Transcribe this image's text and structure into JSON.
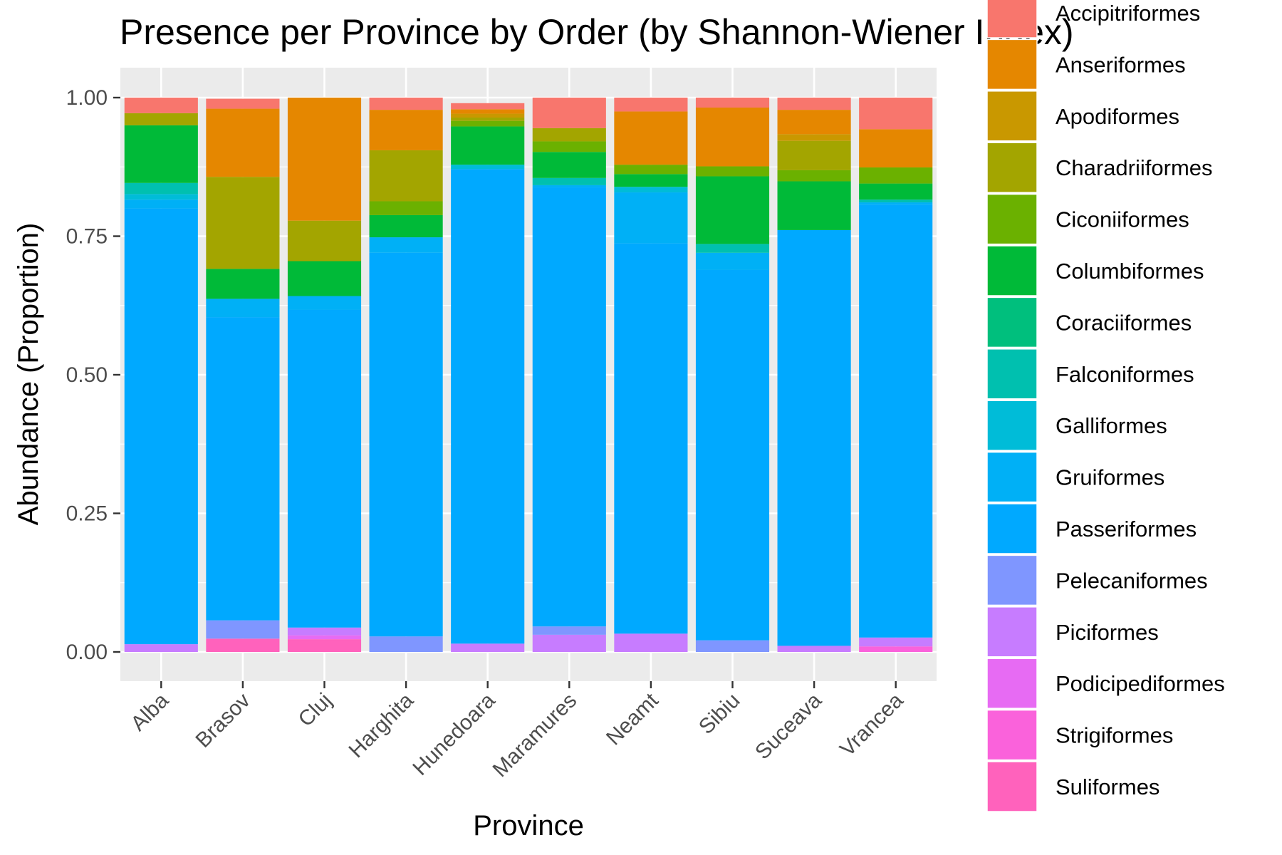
{
  "chart_data": {
    "type": "bar",
    "stacked": true,
    "title": "Presence per Province by Order (by Shannon-Wiener Index)",
    "xlabel": "Province",
    "ylabel": "Abundance (Proportion)",
    "ylim": [
      0,
      1
    ],
    "yticks": [
      "0.00",
      "0.25",
      "0.50",
      "0.75",
      "1.00"
    ],
    "grid": true,
    "legend_position": "right",
    "categories": [
      "Alba",
      "Brasov",
      "Cluj",
      "Harghita",
      "Hunedoara",
      "Maramures",
      "Neamt",
      "Sibiu",
      "Suceava",
      "Vrancea"
    ],
    "series": [
      {
        "name": "Accipitriformes",
        "color": "#F8766D",
        "values": [
          0.028,
          0.018,
          0.0,
          0.022,
          0.011,
          0.055,
          0.025,
          0.018,
          0.022,
          0.057
        ]
      },
      {
        "name": "Anseriformes",
        "color": "#E58700",
        "values": [
          0.0,
          0.123,
          0.222,
          0.073,
          0.008,
          0.0,
          0.096,
          0.106,
          0.044,
          0.069
        ]
      },
      {
        "name": "Apodiformes",
        "color": "#C99800",
        "values": [
          0.0,
          0.0,
          0.0,
          0.0,
          0.007,
          0.0,
          0.0,
          0.0,
          0.012,
          0.0
        ]
      },
      {
        "name": "Charadriiformes",
        "color": "#A3A500",
        "values": [
          0.022,
          0.166,
          0.073,
          0.092,
          0.006,
          0.024,
          0.0,
          0.0,
          0.053,
          0.0
        ]
      },
      {
        "name": "Ciconiiformes",
        "color": "#6BB100",
        "values": [
          0.0,
          0.0,
          0.0,
          0.025,
          0.01,
          0.019,
          0.017,
          0.018,
          0.02,
          0.029
        ]
      },
      {
        "name": "Columbiformes",
        "color": "#00BA38",
        "values": [
          0.104,
          0.054,
          0.063,
          0.04,
          0.069,
          0.047,
          0.023,
          0.122,
          0.088,
          0.029
        ]
      },
      {
        "name": "Coraciiformes",
        "color": "#00BF7D",
        "values": [
          0.0,
          0.0,
          0.0,
          0.0,
          0.0,
          0.0,
          0.0,
          0.0,
          0.0,
          0.0
        ]
      },
      {
        "name": "Falconiformes",
        "color": "#00C0AF",
        "values": [
          0.02,
          0.0,
          0.0,
          0.0,
          0.0,
          0.013,
          0.0,
          0.016,
          0.0,
          0.005
        ]
      },
      {
        "name": "Galliformes",
        "color": "#00BCD8",
        "values": [
          0.01,
          0.0,
          0.0,
          0.0,
          0.008,
          0.0,
          0.01,
          0.0,
          0.0,
          0.0
        ]
      },
      {
        "name": "Gruiformes",
        "color": "#00B0F6",
        "values": [
          0.016,
          0.033,
          0.025,
          0.028,
          0.0,
          0.004,
          0.092,
          0.031,
          0.0,
          0.004
        ]
      },
      {
        "name": "Passeriformes",
        "color": "#00A9FF",
        "values": [
          0.786,
          0.547,
          0.573,
          0.692,
          0.856,
          0.792,
          0.704,
          0.668,
          0.75,
          0.781
        ]
      },
      {
        "name": "Pelecaniformes",
        "color": "#7F96FF",
        "values": [
          0.0,
          0.033,
          0.0,
          0.028,
          0.0,
          0.015,
          0.0,
          0.021,
          0.0,
          0.0
        ]
      },
      {
        "name": "Piciformes",
        "color": "#C77CFF",
        "values": [
          0.014,
          0.0,
          0.014,
          0.0,
          0.015,
          0.031,
          0.033,
          0.0,
          0.011,
          0.016
        ]
      },
      {
        "name": "Podicipediformes",
        "color": "#E76BF3",
        "values": [
          0.0,
          0.0,
          0.007,
          0.0,
          0.0,
          0.0,
          0.0,
          0.0,
          0.0,
          0.0
        ]
      },
      {
        "name": "Strigiformes",
        "color": "#FA62DB",
        "values": [
          0.0,
          0.0,
          0.0,
          0.0,
          0.0,
          0.0,
          0.0,
          0.0,
          0.0,
          0.01
        ]
      },
      {
        "name": "Suliformes",
        "color": "#FF62BC",
        "values": [
          0.0,
          0.024,
          0.023,
          0.0,
          0.0,
          0.0,
          0.0,
          0.0,
          0.0,
          0.0
        ]
      }
    ],
    "panel_background": "#EBEBEB",
    "grid_color": "#FFFFFF"
  }
}
